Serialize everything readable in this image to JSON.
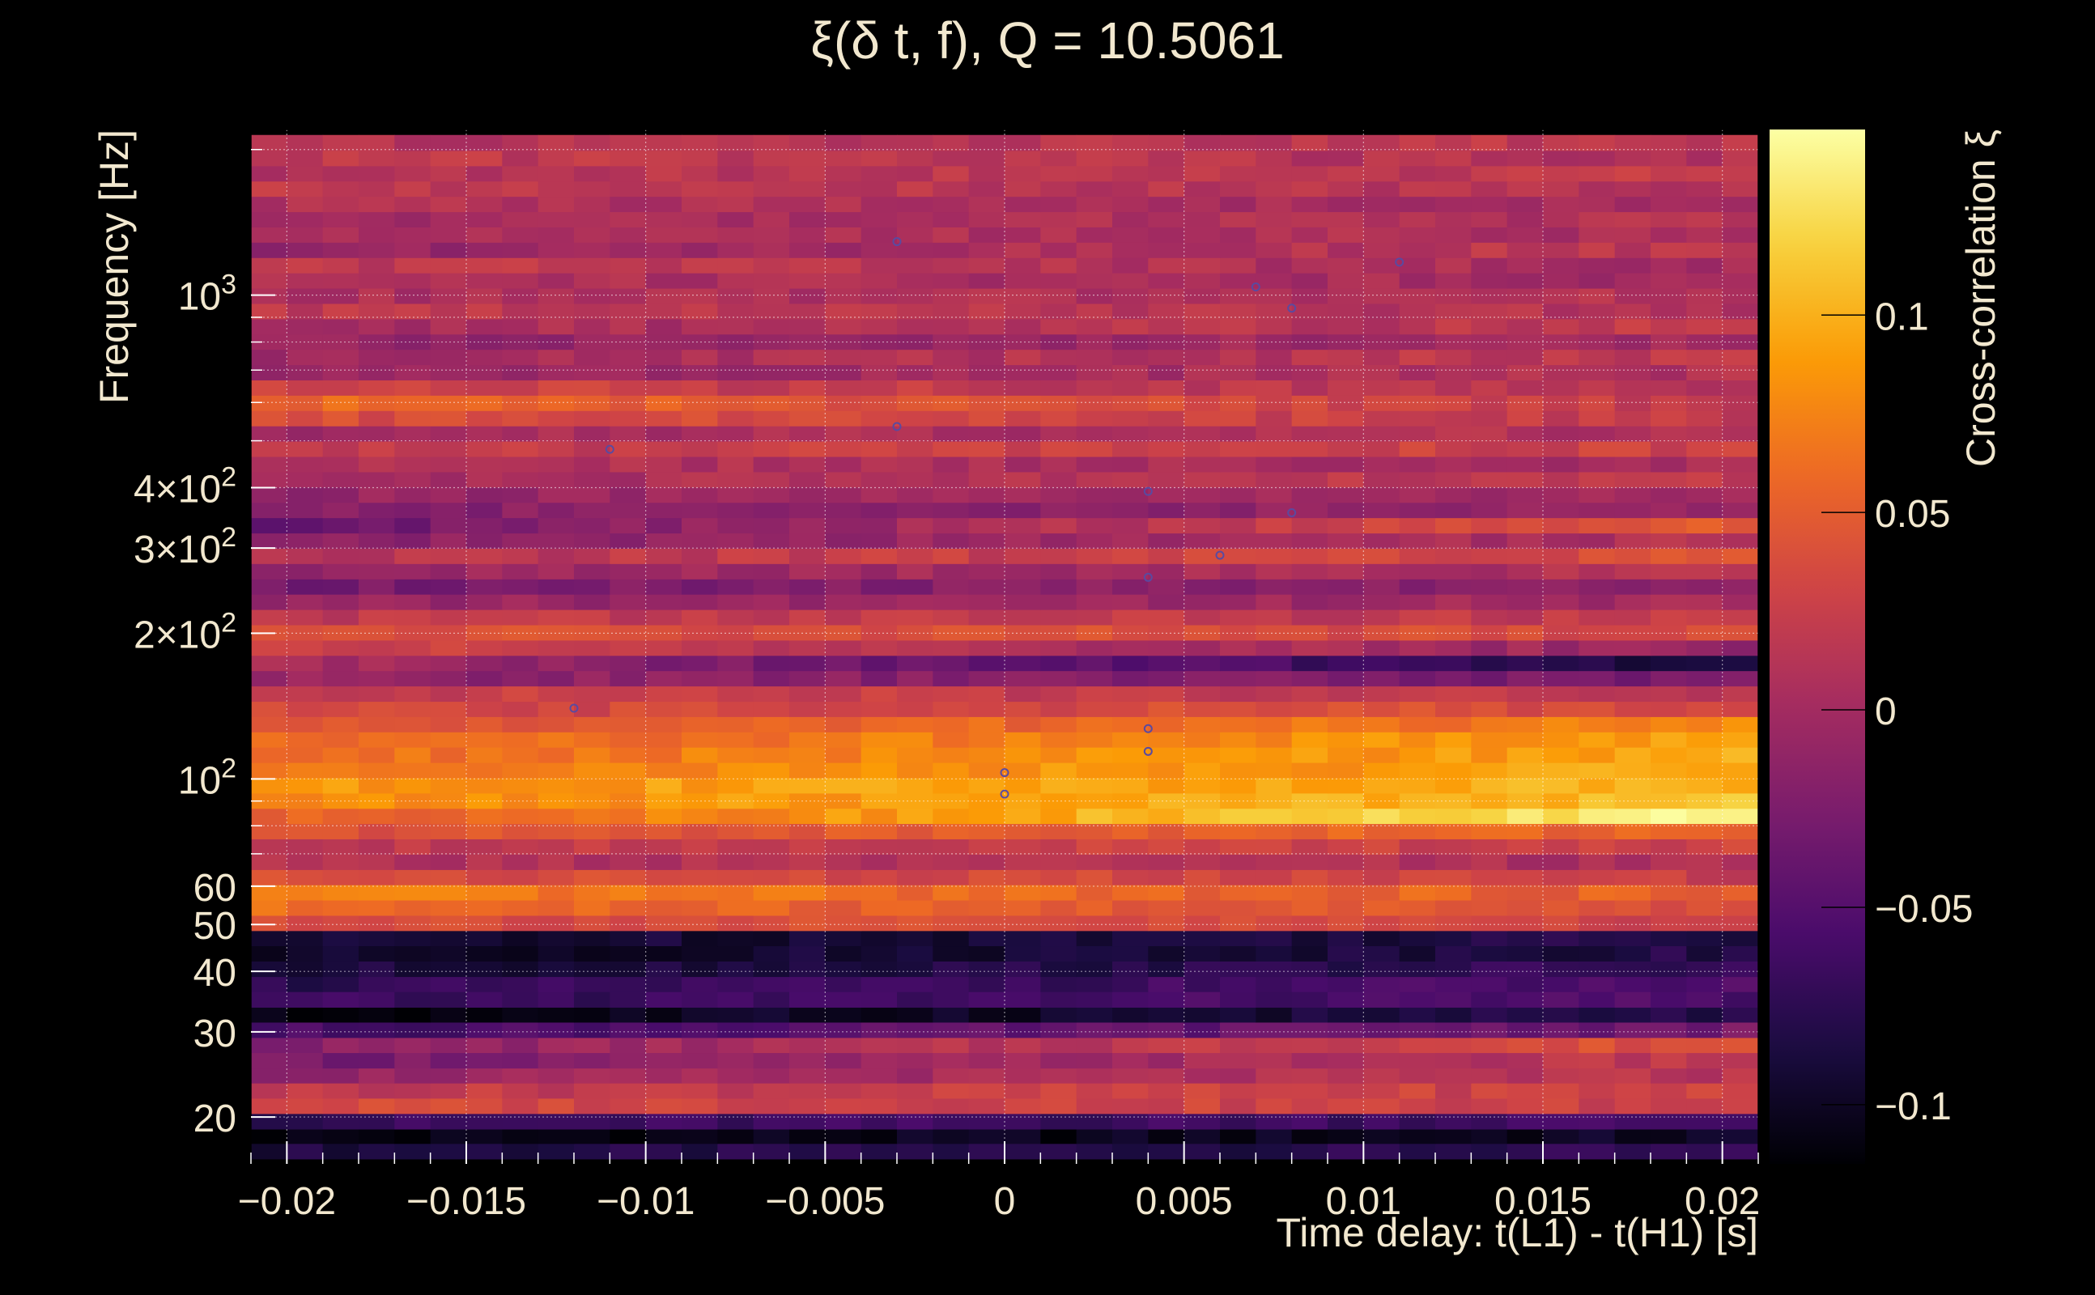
{
  "chart_data": {
    "type": "heatmap",
    "title": "ξ(δ t, f), Q = 10.5061",
    "xlabel": "Time delay: t(L1) - t(H1) [s]",
    "ylabel": "Frequency [Hz]",
    "colorbar_label": "Cross-correlation ξ",
    "x_range": [
      -0.021,
      0.021
    ],
    "y_range_hz": [
      16,
      2200
    ],
    "y_scale": "log",
    "color_range": [
      -0.115,
      0.147
    ],
    "grid": true,
    "colormap": [
      "#000004",
      "#1b0c41",
      "#4a0c6b",
      "#781c6d",
      "#a52c60",
      "#cf4446",
      "#ed6925",
      "#fb9b06",
      "#f7d13d",
      "#fcffa4"
    ],
    "x_ticks": [
      {
        "value": -0.02,
        "label": "−0.02"
      },
      {
        "value": -0.015,
        "label": "−0.015"
      },
      {
        "value": -0.01,
        "label": "−0.01"
      },
      {
        "value": -0.005,
        "label": "−0.005"
      },
      {
        "value": 0,
        "label": "0"
      },
      {
        "value": 0.005,
        "label": "0.005"
      },
      {
        "value": 0.01,
        "label": "0.01"
      },
      {
        "value": 0.015,
        "label": "0.015"
      },
      {
        "value": 0.02,
        "label": "0.02"
      }
    ],
    "y_ticks": [
      {
        "value": 20,
        "label": "20"
      },
      {
        "value": 30,
        "label": "30"
      },
      {
        "value": 40,
        "label": "40"
      },
      {
        "value": 50,
        "label": "50"
      },
      {
        "value": 60,
        "label": "60"
      },
      {
        "value": 100,
        "label": "10^2"
      },
      {
        "value": 200,
        "label": "2×10^2"
      },
      {
        "value": 300,
        "label": "3×10^2"
      },
      {
        "value": 400,
        "label": "4×10^2"
      },
      {
        "value": 1000,
        "label": "10^3"
      }
    ],
    "colorbar_ticks": [
      {
        "value": 0.1,
        "label": "0.1"
      },
      {
        "value": 0.05,
        "label": "0.05"
      },
      {
        "value": 0,
        "label": "0"
      },
      {
        "value": -0.05,
        "label": "−0.05"
      },
      {
        "value": -0.1,
        "label": "−0.1"
      }
    ],
    "bands": [
      {
        "f": 17.0,
        "start": -0.085,
        "end": -0.075
      },
      {
        "f": 18.3,
        "start": -0.11,
        "end": -0.1
      },
      {
        "f": 19.6,
        "start": -0.07,
        "end": -0.06
      },
      {
        "f": 21.1,
        "start": 0.035,
        "end": 0.025
      },
      {
        "f": 22.7,
        "start": 0.02,
        "end": 0.03
      },
      {
        "f": 24.4,
        "start": -0.01,
        "end": 0.015
      },
      {
        "f": 26.2,
        "start": -0.03,
        "end": 0.02
      },
      {
        "f": 28.2,
        "start": -0.02,
        "end": 0.045
      },
      {
        "f": 30.3,
        "start": -0.06,
        "end": -0.03
      },
      {
        "f": 32.6,
        "start": -0.113,
        "end": -0.08
      },
      {
        "f": 35.0,
        "start": -0.07,
        "end": -0.055
      },
      {
        "f": 37.7,
        "start": -0.075,
        "end": -0.055
      },
      {
        "f": 40.5,
        "start": -0.09,
        "end": -0.07
      },
      {
        "f": 43.6,
        "start": -0.1,
        "end": -0.08
      },
      {
        "f": 46.9,
        "start": -0.095,
        "end": -0.08
      },
      {
        "f": 50.4,
        "start": 0.04,
        "end": 0.03
      },
      {
        "f": 54.2,
        "start": 0.06,
        "end": 0.04
      },
      {
        "f": 58.3,
        "start": 0.07,
        "end": 0.05
      },
      {
        "f": 62.7,
        "start": 0.04,
        "end": 0.025
      },
      {
        "f": 67.4,
        "start": 0.01,
        "end": 0.005
      },
      {
        "f": 72.5,
        "start": 0.02,
        "end": 0.03
      },
      {
        "f": 78.0,
        "start": 0.04,
        "end": 0.06
      },
      {
        "f": 83.9,
        "start": 0.05,
        "end": 0.14
      },
      {
        "f": 90.2,
        "start": 0.075,
        "end": 0.11
      },
      {
        "f": 97.0,
        "start": 0.085,
        "end": 0.1
      },
      {
        "f": 104.3,
        "start": 0.07,
        "end": 0.095
      },
      {
        "f": 112.2,
        "start": 0.06,
        "end": 0.095
      },
      {
        "f": 120.7,
        "start": 0.055,
        "end": 0.09
      },
      {
        "f": 129.8,
        "start": 0.04,
        "end": 0.075
      },
      {
        "f": 139.6,
        "start": 0.03,
        "end": 0.04
      },
      {
        "f": 150.1,
        "start": 0.025,
        "end": 0.02
      },
      {
        "f": 161.5,
        "start": -0.01,
        "end": -0.03
      },
      {
        "f": 173.7,
        "start": 0.005,
        "end": -0.09
      },
      {
        "f": 186.8,
        "start": 0.03,
        "end": -0.01
      },
      {
        "f": 200.9,
        "start": 0.04,
        "end": 0.035
      },
      {
        "f": 216.1,
        "start": 0.02,
        "end": 0.02
      },
      {
        "f": 232.4,
        "start": -0.01,
        "end": 0.0
      },
      {
        "f": 250.0,
        "start": -0.03,
        "end": -0.01
      },
      {
        "f": 268.8,
        "start": -0.01,
        "end": 0.01
      },
      {
        "f": 289.2,
        "start": 0.01,
        "end": 0.04
      },
      {
        "f": 311.0,
        "start": -0.02,
        "end": 0.01
      },
      {
        "f": 334.5,
        "start": -0.04,
        "end": 0.05
      },
      {
        "f": 359.8,
        "start": -0.02,
        "end": -0.01
      },
      {
        "f": 387.0,
        "start": -0.01,
        "end": 0.0
      },
      {
        "f": 416.2,
        "start": 0.0,
        "end": 0.02
      },
      {
        "f": 447.7,
        "start": 0.01,
        "end": 0.0
      },
      {
        "f": 481.5,
        "start": 0.02,
        "end": 0.03
      },
      {
        "f": 517.9,
        "start": 0.0,
        "end": 0.01
      },
      {
        "f": 557.0,
        "start": 0.04,
        "end": 0.02
      },
      {
        "f": 599.1,
        "start": 0.06,
        "end": 0.02
      },
      {
        "f": 644.4,
        "start": 0.03,
        "end": 0.01
      },
      {
        "f": 693.0,
        "start": -0.01,
        "end": 0.01
      },
      {
        "f": 745.4,
        "start": 0.0,
        "end": 0.02
      },
      {
        "f": 801.7,
        "start": -0.01,
        "end": 0.0
      },
      {
        "f": 862.3,
        "start": 0.0,
        "end": 0.02
      },
      {
        "f": 927.4,
        "start": 0.02,
        "end": 0.01
      },
      {
        "f": 997.5,
        "start": 0.005,
        "end": 0.01
      },
      {
        "f": 1072.8,
        "start": 0.01,
        "end": 0.0
      },
      {
        "f": 1153.9,
        "start": 0.02,
        "end": 0.0
      },
      {
        "f": 1241.0,
        "start": -0.01,
        "end": 0.02
      },
      {
        "f": 1334.8,
        "start": 0.01,
        "end": 0.005
      },
      {
        "f": 1435.6,
        "start": 0.0,
        "end": 0.01
      },
      {
        "f": 1544.0,
        "start": 0.01,
        "end": 0.0
      },
      {
        "f": 1660.7,
        "start": 0.02,
        "end": 0.01
      },
      {
        "f": 1786.1,
        "start": 0.01,
        "end": 0.02
      },
      {
        "f": 1921.0,
        "start": 0.02,
        "end": 0.01
      },
      {
        "f": 2066.1,
        "start": 0.01,
        "end": 0.02
      }
    ],
    "peaks": [
      {
        "dt": -0.012,
        "f": 140
      },
      {
        "dt": -0.011,
        "f": 480
      },
      {
        "dt": -0.003,
        "f": 535
      },
      {
        "dt": -0.003,
        "f": 1290
      },
      {
        "dt": 0.0,
        "f": 103
      },
      {
        "dt": 0.0,
        "f": 93
      },
      {
        "dt": 0.004,
        "f": 127
      },
      {
        "dt": 0.004,
        "f": 114
      },
      {
        "dt": 0.004,
        "f": 393
      },
      {
        "dt": 0.004,
        "f": 261
      },
      {
        "dt": 0.006,
        "f": 290
      },
      {
        "dt": 0.007,
        "f": 1040
      },
      {
        "dt": 0.008,
        "f": 940
      },
      {
        "dt": 0.008,
        "f": 355
      },
      {
        "dt": 0.011,
        "f": 1170
      }
    ]
  }
}
